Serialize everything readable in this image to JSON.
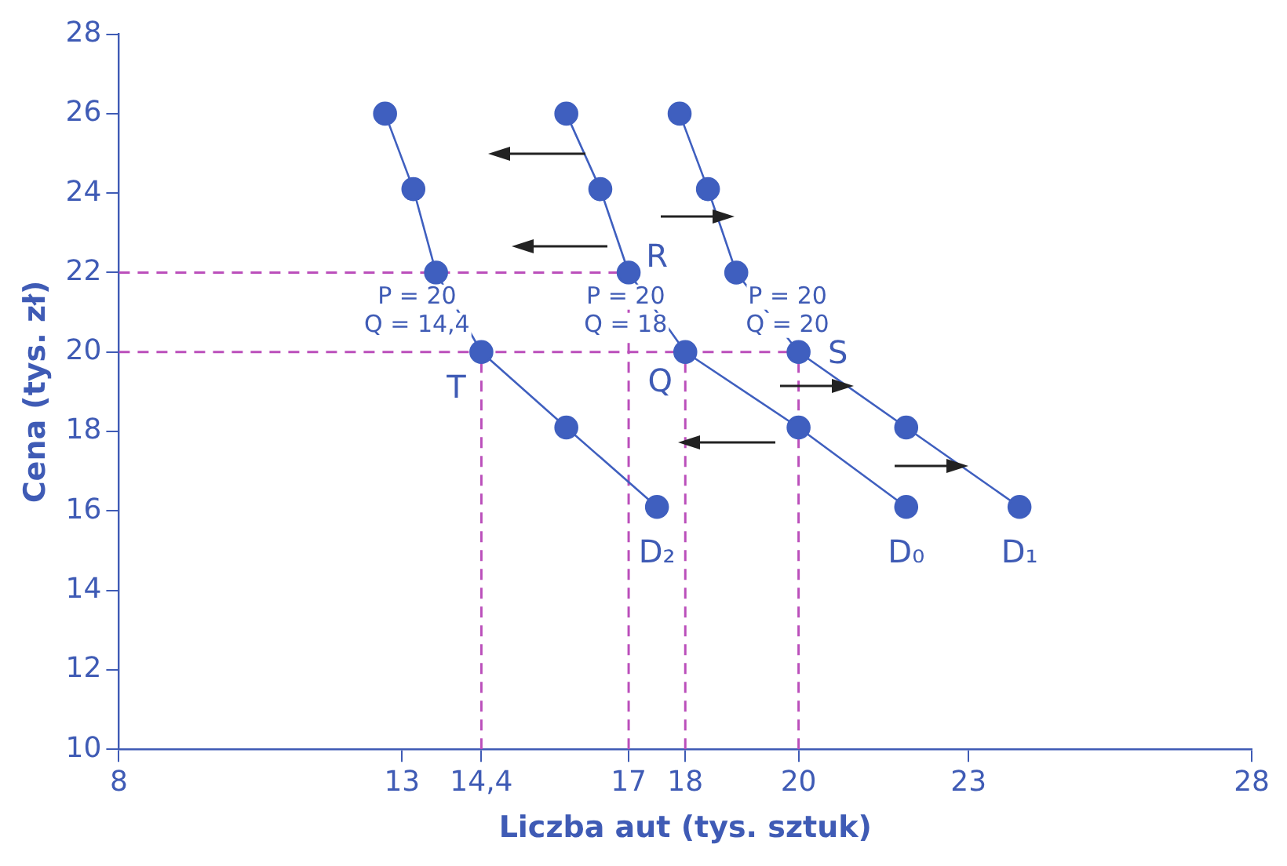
{
  "chart_data": {
    "type": "line",
    "xlabel": "Liczba aut (tys. sztuk)",
    "ylabel": "Cena (tys. zł)",
    "xlim": [
      8,
      28
    ],
    "xticks": [
      8,
      13,
      {
        "value": 14.4,
        "label": "14,4"
      },
      17,
      18,
      20,
      23,
      28
    ],
    "ylim": [
      10,
      28
    ],
    "yticks": [
      10,
      12,
      14,
      16,
      18,
      20,
      22,
      24,
      26,
      28
    ],
    "grid": false,
    "legend": false,
    "marker": "circle",
    "line_style": "solid",
    "series": [
      {
        "name": "D₂",
        "color": "#3f5fbf",
        "x": [
          12.7,
          13.2,
          13.6,
          14.4,
          15.9,
          17.5
        ],
        "values": [
          26,
          24.1,
          22,
          20,
          18.1,
          16.1
        ]
      },
      {
        "name": "D₀",
        "color": "#3f5fbf",
        "x": [
          15.9,
          16.5,
          17,
          18,
          20,
          21.9
        ],
        "values": [
          26,
          24.1,
          22,
          20,
          18.1,
          16.1
        ]
      },
      {
        "name": "D₁",
        "color": "#3f5fbf",
        "x": [
          17.9,
          18.4,
          18.9,
          20,
          21.9,
          23.9
        ],
        "values": [
          26,
          24.1,
          22,
          20,
          18.1,
          16.1
        ]
      },
      {
        "color": "#bb4fbb",
        "marker": "none",
        "line_style": "dashed",
        "x": [
          8,
          17
        ],
        "values": [
          22,
          22
        ]
      },
      {
        "color": "#bb4fbb",
        "marker": "none",
        "line_style": "dashed",
        "x": [
          8,
          20
        ],
        "values": [
          20,
          20
        ]
      },
      {
        "color": "#bb4fbb",
        "marker": "none",
        "line_style": "dashed",
        "x": [
          14.4,
          14.4
        ],
        "values": [
          10,
          20
        ]
      },
      {
        "color": "#bb4fbb",
        "marker": "none",
        "line_style": "dashed",
        "x": [
          17,
          17
        ],
        "values": [
          10,
          22
        ]
      },
      {
        "color": "#bb4fbb",
        "marker": "none",
        "line_style": "dashed",
        "x": [
          18,
          18
        ],
        "values": [
          10,
          20
        ]
      },
      {
        "color": "#bb4fbb",
        "marker": "none",
        "line_style": "dashed",
        "x": [
          20,
          20
        ],
        "values": [
          10,
          20
        ]
      }
    ],
    "annotations": [
      {
        "text": "R",
        "x": 17,
        "y": 22
      },
      {
        "text": "P = 20",
        "x": 14.4,
        "y": 20
      },
      {
        "text": "Q = 14,4",
        "x": 14.4,
        "y": 20
      },
      {
        "text": "P = 20",
        "x": 18,
        "y": 20
      },
      {
        "text": "Q = 18",
        "x": 18,
        "y": 20
      },
      {
        "text": "P = 20",
        "x": 20,
        "y": 20
      },
      {
        "text": "Q = 20",
        "x": 20,
        "y": 20
      },
      {
        "text": "T",
        "x": 14.4,
        "y": 20
      },
      {
        "text": "Q",
        "x": 18,
        "y": 20
      },
      {
        "text": "S",
        "x": 20,
        "y": 20
      }
    ]
  }
}
